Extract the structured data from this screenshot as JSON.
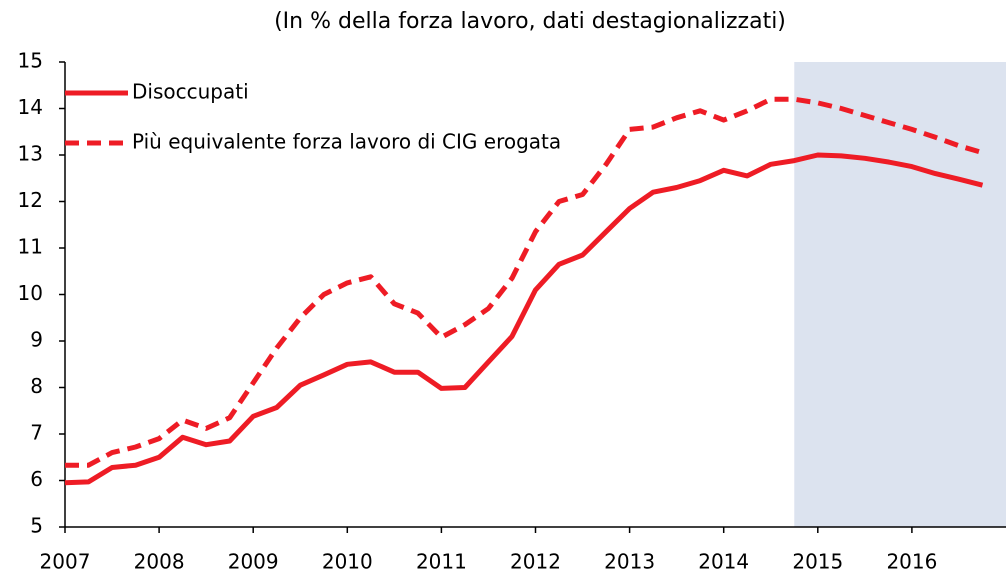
{
  "chart_data": {
    "type": "line",
    "title": "(In % della forza lavoro, dati destagionalizzati)",
    "x": [
      2007,
      2007.25,
      2007.5,
      2007.75,
      2008,
      2008.25,
      2008.5,
      2008.75,
      2009,
      2009.25,
      2009.5,
      2009.75,
      2010,
      2010.25,
      2010.5,
      2010.75,
      2011,
      2011.25,
      2011.5,
      2011.75,
      2012,
      2012.25,
      2012.5,
      2012.75,
      2013,
      2013.25,
      2013.5,
      2013.75,
      2014,
      2014.25,
      2014.5,
      2014.75,
      2015,
      2015.25,
      2015.5,
      2015.75,
      2016,
      2016.25,
      2016.5,
      2016.75
    ],
    "series": [
      {
        "name": "Disoccupati",
        "color": "#ee1c25",
        "dashed": false,
        "values": [
          5.95,
          5.97,
          6.28,
          6.33,
          6.5,
          6.93,
          6.77,
          6.85,
          7.38,
          7.57,
          8.05,
          8.27,
          8.5,
          8.55,
          8.33,
          8.33,
          7.98,
          8.0,
          8.55,
          9.1,
          10.1,
          10.65,
          10.85,
          11.35,
          11.85,
          12.2,
          12.3,
          12.45,
          12.67,
          12.55,
          12.8,
          12.88,
          13.0,
          12.98,
          12.93,
          12.85,
          12.75,
          12.6,
          12.48,
          12.35
        ]
      },
      {
        "name": "Più equivalente  forza lavoro di CIG erogata",
        "color": "#ee1c25",
        "dashed": true,
        "values": [
          6.33,
          6.33,
          6.6,
          6.72,
          6.9,
          7.3,
          7.12,
          7.35,
          8.1,
          8.85,
          9.5,
          10.0,
          10.25,
          10.38,
          9.8,
          9.6,
          9.08,
          9.35,
          9.7,
          10.35,
          11.35,
          12.0,
          12.15,
          12.8,
          13.55,
          13.6,
          13.8,
          13.95,
          13.75,
          13.95,
          14.2,
          14.2,
          14.12,
          14.0,
          13.85,
          13.7,
          13.55,
          13.38,
          13.2,
          13.05
        ]
      }
    ],
    "xlim": [
      2007,
      2017
    ],
    "xticks": [
      2007,
      2008,
      2009,
      2010,
      2011,
      2012,
      2013,
      2014,
      2015,
      2016
    ],
    "ylim": [
      5,
      15
    ],
    "yticks": [
      5,
      6,
      7,
      8,
      9,
      10,
      11,
      12,
      13,
      14,
      15
    ],
    "grid": false,
    "legend": "upper left",
    "shade": {
      "from": 2014.75,
      "to": 2017,
      "color": "#dce3ef"
    }
  }
}
